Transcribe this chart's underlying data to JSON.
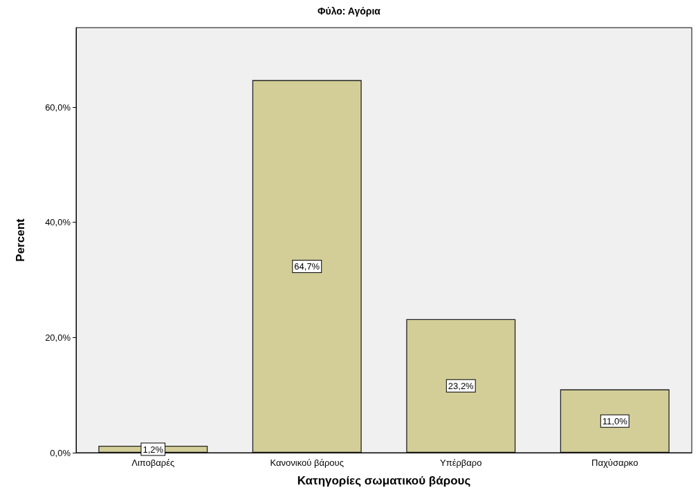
{
  "chart_data": {
    "type": "bar",
    "title": "Φύλο: Αγόρια",
    "xlabel": "Κατηγορίες σωματικού βάρους",
    "ylabel": "Percent",
    "categories": [
      "Λιποβαρές",
      "Κανονικού βάρους",
      "Υπέρβαρο",
      "Παχύσαρκο"
    ],
    "values": [
      1.2,
      64.7,
      23.2,
      11.0
    ],
    "color": "#d3ce98",
    "value_labels": [
      "1,2%",
      "64,7%",
      "23,2%",
      "11,0%"
    ],
    "ylim": [
      0,
      73.8
    ],
    "yticks": [
      {
        "value": 0,
        "label": "0,0%"
      },
      {
        "value": 20,
        "label": "20,0%"
      },
      {
        "value": 40,
        "label": "40,0%"
      },
      {
        "value": 60,
        "label": "60,0%"
      }
    ],
    "grid": false
  }
}
